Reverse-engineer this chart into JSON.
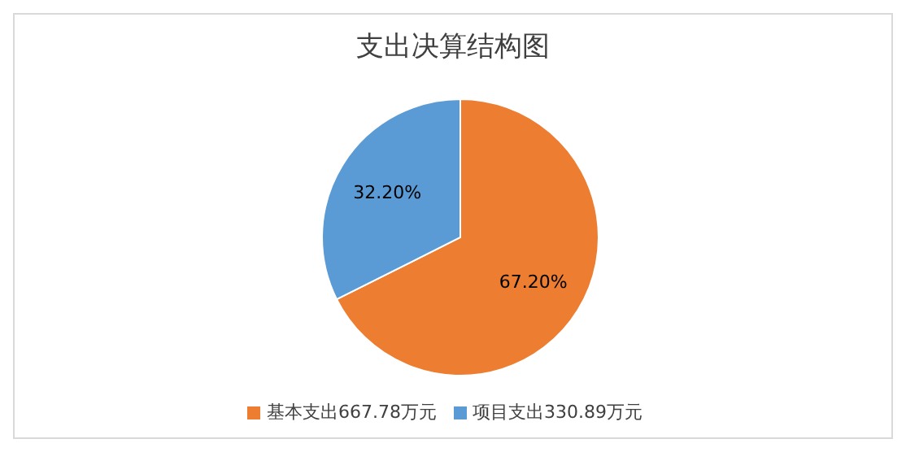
{
  "chart_data": {
    "type": "pie",
    "title": "支出决算结构图",
    "categories": [
      "基本支出667.78万元",
      "项目支出330.89万元"
    ],
    "values": [
      67.2,
      32.2
    ],
    "colors": [
      "#ed7d31",
      "#5b9bd5"
    ],
    "value_labels": [
      "67.20%",
      "32.20%"
    ],
    "legend": "bottom"
  }
}
